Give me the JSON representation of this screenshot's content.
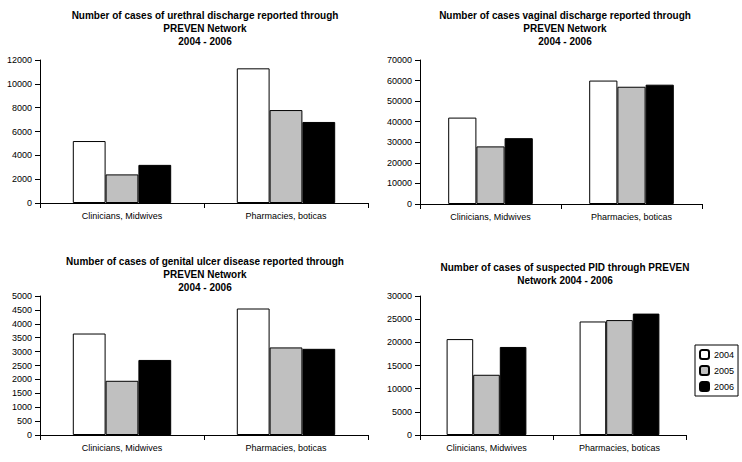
{
  "chart_data": [
    {
      "type": "bar",
      "title": "Number of cases of urethral discharge reported through\nPREVEN Network\n2004 - 2006",
      "categories": [
        "Clinicians, Midwives",
        "Pharmacies, boticas"
      ],
      "series": [
        {
          "name": "2004",
          "color": "#ffffff",
          "values": [
            5200,
            11300
          ]
        },
        {
          "name": "2005",
          "color": "#c0c0c0",
          "values": [
            2400,
            7800
          ]
        },
        {
          "name": "2006",
          "color": "#000000",
          "values": [
            3200,
            6800
          ]
        }
      ],
      "ylim": [
        0,
        12000
      ],
      "yticks": [
        0,
        2000,
        4000,
        6000,
        8000,
        10000,
        12000
      ],
      "grid": false
    },
    {
      "type": "bar",
      "title": "Number of cases vaginal discharge reported through\nPREVEN Network\n2004 - 2006",
      "categories": [
        "Clinicians, Midwives",
        "Pharmacies, boticas"
      ],
      "series": [
        {
          "name": "2004",
          "color": "#ffffff",
          "values": [
            42000,
            60000
          ]
        },
        {
          "name": "2005",
          "color": "#c0c0c0",
          "values": [
            28000,
            57000
          ]
        },
        {
          "name": "2006",
          "color": "#000000",
          "values": [
            32000,
            58000
          ]
        }
      ],
      "ylim": [
        0,
        70000
      ],
      "yticks": [
        0,
        10000,
        20000,
        30000,
        40000,
        50000,
        60000,
        70000
      ],
      "grid": false
    },
    {
      "type": "bar",
      "title": "Number of cases of genital ulcer disease reported through\nPREVEN Network\n2004 - 2006",
      "categories": [
        "Clinicians, Midwives",
        "Pharmacies, boticas"
      ],
      "series": [
        {
          "name": "2004",
          "color": "#ffffff",
          "values": [
            3650,
            4550
          ]
        },
        {
          "name": "2005",
          "color": "#c0c0c0",
          "values": [
            1950,
            3150
          ]
        },
        {
          "name": "2006",
          "color": "#000000",
          "values": [
            2700,
            3100
          ]
        }
      ],
      "ylim": [
        0,
        5000
      ],
      "yticks": [
        0,
        500,
        1000,
        1500,
        2000,
        2500,
        3000,
        3500,
        4000,
        4500,
        5000
      ],
      "grid": false
    },
    {
      "type": "bar",
      "title": "Number of cases of suspected PID through PREVEN\nNetwork 2004 - 2006",
      "categories": [
        "Clinicians, Midwives",
        "Pharmacies, boticas"
      ],
      "series": [
        {
          "name": "2004",
          "color": "#ffffff",
          "values": [
            20700,
            24500
          ]
        },
        {
          "name": "2005",
          "color": "#c0c0c0",
          "values": [
            13000,
            24800
          ]
        },
        {
          "name": "2006",
          "color": "#000000",
          "values": [
            19000,
            26200
          ]
        }
      ],
      "ylim": [
        0,
        30000
      ],
      "yticks": [
        0,
        5000,
        10000,
        15000,
        20000,
        25000,
        30000
      ],
      "grid": false,
      "legend": "right"
    }
  ]
}
